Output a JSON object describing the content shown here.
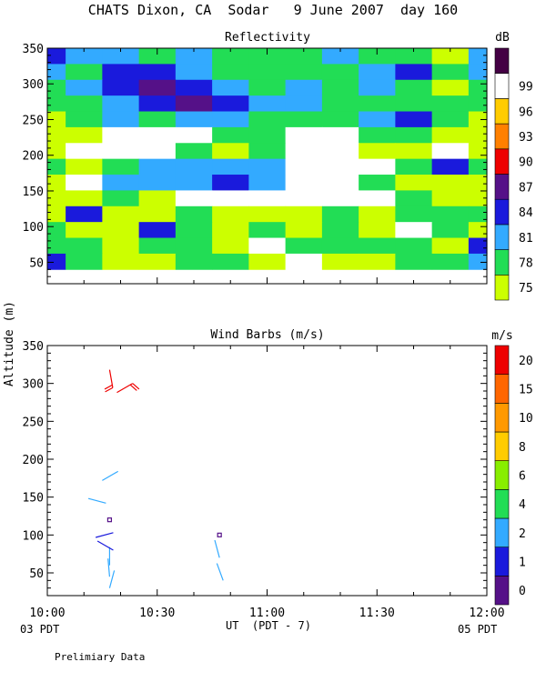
{
  "title": "CHATS Dixon, CA  Sodar   9 June 2007  day 160",
  "footer": {
    "left_date": "03 PDT",
    "right_date": "05 PDT",
    "note": "Prelimiary Data"
  },
  "chart_data": [
    {
      "type": "heatmap",
      "title": "Reflectivity",
      "xlabel": "",
      "ylabel": "",
      "x_range": [
        "10:00",
        "12:00"
      ],
      "ylim": [
        20,
        350
      ],
      "data_ylim": [
        40,
        350
      ],
      "ytick_labels": [
        "50",
        "100",
        "150",
        "200",
        "250",
        "300",
        "350"
      ],
      "ytick_values": [
        50,
        100,
        150,
        200,
        250,
        300,
        350
      ],
      "colorbar": {
        "unit": "dB",
        "labels": [
          "75",
          "78",
          "81",
          "84",
          "87",
          "90",
          "93",
          "96",
          "99"
        ],
        "colors": [
          "#ccff00",
          "#22dd55",
          "#33aaff",
          "#1a1adc",
          "#551188",
          "#ee0000",
          "#ff8000",
          "#ffcc00",
          "#ffffff",
          "#440044"
        ]
      },
      "grid": false,
      "levels_note": "cell values = index into colorbar.colors (0=75dB … 8=99+)",
      "x_minutes": [
        0,
        10,
        20,
        30,
        40,
        50,
        60,
        70,
        80,
        90,
        100,
        110,
        120
      ],
      "z": [
        [
          3,
          2,
          2,
          1,
          2,
          1,
          1,
          1,
          2,
          1,
          1,
          0,
          2
        ],
        [
          2,
          1,
          3,
          3,
          2,
          1,
          1,
          1,
          1,
          2,
          3,
          1,
          2
        ],
        [
          1,
          2,
          3,
          4,
          3,
          2,
          1,
          2,
          1,
          2,
          1,
          0,
          1
        ],
        [
          1,
          1,
          2,
          3,
          4,
          3,
          2,
          2,
          1,
          1,
          1,
          1,
          1
        ],
        [
          0,
          1,
          2,
          1,
          2,
          2,
          1,
          1,
          1,
          2,
          3,
          1,
          0
        ],
        [
          0,
          0,
          8,
          8,
          8,
          1,
          1,
          8,
          8,
          1,
          1,
          0,
          0
        ],
        [
          0,
          8,
          8,
          8,
          1,
          0,
          1,
          8,
          8,
          0,
          0,
          8,
          0
        ],
        [
          1,
          0,
          1,
          2,
          2,
          2,
          2,
          8,
          8,
          8,
          1,
          3,
          1
        ],
        [
          0,
          8,
          2,
          2,
          2,
          3,
          2,
          8,
          8,
          1,
          0,
          0,
          0
        ],
        [
          0,
          0,
          1,
          0,
          8,
          8,
          8,
          8,
          8,
          8,
          1,
          0,
          0
        ],
        [
          0,
          3,
          0,
          0,
          1,
          0,
          0,
          0,
          1,
          0,
          1,
          1,
          1
        ],
        [
          1,
          0,
          0,
          3,
          1,
          0,
          1,
          0,
          1,
          0,
          8,
          1,
          0
        ],
        [
          1,
          1,
          0,
          1,
          1,
          0,
          8,
          1,
          1,
          1,
          1,
          0,
          3
        ],
        [
          3,
          1,
          0,
          0,
          1,
          1,
          0,
          8,
          0,
          0,
          1,
          1,
          2
        ]
      ]
    },
    {
      "type": "scatter",
      "title": "Wind Barbs (m/s)",
      "xlabel": "UT  (PDT - 7)",
      "ylabel": "Altitude (m)",
      "xtick_labels": [
        "10:00",
        "10:30",
        "11:00",
        "11:30",
        "12:00"
      ],
      "xtick_values": [
        0,
        30,
        60,
        90,
        120
      ],
      "ylim": [
        20,
        350
      ],
      "ytick_labels": [
        "50",
        "100",
        "150",
        "200",
        "250",
        "300",
        "350"
      ],
      "ytick_values": [
        50,
        100,
        150,
        200,
        250,
        300,
        350
      ],
      "colorbar": {
        "unit": "m/s",
        "labels": [
          "0",
          "1",
          "2",
          "4",
          "6",
          "8",
          "10",
          "15",
          "20"
        ],
        "colors": [
          "#551188",
          "#1a1adc",
          "#33aaff",
          "#22dd55",
          "#88ee00",
          "#ffcc00",
          "#ff9900",
          "#ff6600",
          "#ee0000"
        ]
      },
      "barb_note": "x in minutes after 10:00 UT, y altitude m, dir = compass degrees of the shaft, speed m/s",
      "barbs": [
        {
          "x": 17,
          "y": 30,
          "dir": 15,
          "speed": 1.5,
          "color": "#33aaff"
        },
        {
          "x": 17,
          "y": 45,
          "dir": 355,
          "speed": 1.5,
          "color": "#33aaff"
        },
        {
          "x": 17,
          "y": 60,
          "dir": 0,
          "speed": 1.5,
          "color": "#33aaff"
        },
        {
          "x": 18,
          "y": 80,
          "dir": 300,
          "speed": 1.0,
          "color": "#1a1adc"
        },
        {
          "x": 18,
          "y": 103,
          "dir": 255,
          "speed": 1.0,
          "color": "#1a1adc"
        },
        {
          "x": 17,
          "y": 120,
          "dir": 0,
          "speed": 0.0,
          "color": "#551188"
        },
        {
          "x": 16,
          "y": 142,
          "dir": 285,
          "speed": 2.0,
          "color": "#33aaff"
        },
        {
          "x": 15,
          "y": 172,
          "dir": 60,
          "speed": 2.0,
          "color": "#33aaff"
        },
        {
          "x": 19,
          "y": 288,
          "dir": 60,
          "speed": 20.0,
          "color": "#ee0000"
        },
        {
          "x": 17,
          "y": 318,
          "dir": 170,
          "speed": 20.0,
          "color": "#ee0000"
        },
        {
          "x": 47,
          "y": 100,
          "dir": 0,
          "speed": 0.0,
          "color": "#551188"
        },
        {
          "x": 47,
          "y": 70,
          "dir": 345,
          "speed": 1.5,
          "color": "#33aaff"
        },
        {
          "x": 48,
          "y": 40,
          "dir": 340,
          "speed": 1.5,
          "color": "#33aaff"
        }
      ]
    }
  ]
}
